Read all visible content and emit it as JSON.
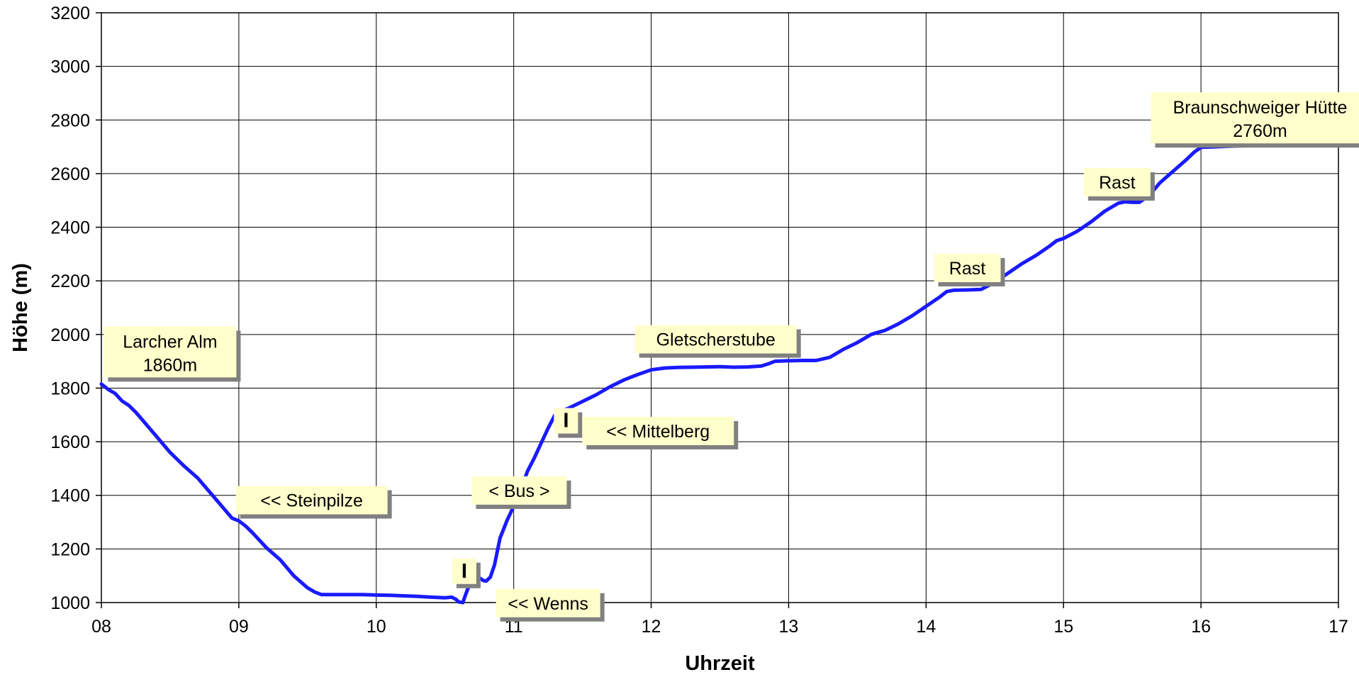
{
  "chart_data": {
    "type": "line",
    "xlabel": "Uhrzeit",
    "ylabel": "Höhe (m)",
    "xlim": [
      8,
      17
    ],
    "ylim": [
      1000,
      3200
    ],
    "x_ticks": [
      8,
      9,
      10,
      11,
      12,
      13,
      14,
      15,
      16,
      17
    ],
    "x_tick_labels": [
      "08",
      "09",
      "10",
      "11",
      "12",
      "13",
      "14",
      "15",
      "16",
      "17"
    ],
    "y_ticks": [
      1000,
      1200,
      1400,
      1600,
      1800,
      2000,
      2200,
      2400,
      2600,
      2800,
      3000,
      3200
    ],
    "y_tick_labels": [
      "1000",
      "1200",
      "1400",
      "1600",
      "1800",
      "2000",
      "2200",
      "2400",
      "2600",
      "2800",
      "3000",
      "3200"
    ],
    "grid": true,
    "line_color": "#1a1aff",
    "annotation_fill": "#ffffcc",
    "annotation_shadow": "#808080",
    "series": [
      {
        "x": [
          8.0,
          8.05,
          8.1,
          8.15,
          8.2,
          8.25,
          8.3,
          8.4,
          8.5,
          8.6,
          8.7,
          8.8,
          8.9,
          8.95,
          9.0,
          9.05,
          9.1,
          9.2,
          9.3,
          9.4,
          9.5,
          9.55,
          9.6,
          9.7,
          9.8,
          9.9,
          10.0,
          10.1,
          10.2,
          10.3,
          10.4,
          10.5,
          10.55,
          10.58,
          10.6,
          10.63,
          10.65,
          10.68,
          10.7,
          10.72,
          10.75,
          10.78,
          10.8,
          10.83,
          10.86,
          10.9,
          10.95,
          11.0,
          11.05,
          11.1,
          11.15,
          11.2,
          11.25,
          11.3,
          11.35,
          11.4,
          11.5,
          11.6,
          11.7,
          11.8,
          11.9,
          12.0,
          12.1,
          12.2,
          12.3,
          12.4,
          12.5,
          12.6,
          12.7,
          12.8,
          12.85,
          12.9,
          13.0,
          13.1,
          13.2,
          13.3,
          13.4,
          13.5,
          13.6,
          13.65,
          13.7,
          13.8,
          13.9,
          14.0,
          14.1,
          14.15,
          14.2,
          14.3,
          14.4,
          14.5,
          14.6,
          14.7,
          14.8,
          14.9,
          14.95,
          15.0,
          15.1,
          15.2,
          15.3,
          15.4,
          15.45,
          15.5,
          15.55,
          15.6,
          15.65,
          15.7,
          15.8,
          15.9,
          15.95,
          16.0,
          16.1,
          16.2,
          16.3,
          16.4,
          16.5,
          16.6,
          16.7,
          16.75,
          16.8,
          16.83
        ],
        "y": [
          1815,
          1795,
          1780,
          1752,
          1735,
          1710,
          1680,
          1620,
          1560,
          1510,
          1465,
          1405,
          1345,
          1315,
          1305,
          1285,
          1260,
          1205,
          1160,
          1100,
          1055,
          1040,
          1030,
          1030,
          1030,
          1030,
          1028,
          1027,
          1025,
          1023,
          1020,
          1018,
          1020,
          1012,
          1002,
          1000,
          1030,
          1070,
          1092,
          1098,
          1092,
          1082,
          1080,
          1095,
          1140,
          1240,
          1305,
          1360,
          1420,
          1490,
          1540,
          1595,
          1650,
          1700,
          1715,
          1725,
          1750,
          1775,
          1805,
          1830,
          1850,
          1868,
          1875,
          1877,
          1878,
          1879,
          1880,
          1878,
          1879,
          1882,
          1890,
          1900,
          1902,
          1903,
          1903,
          1915,
          1945,
          1970,
          2000,
          2008,
          2015,
          2040,
          2070,
          2105,
          2140,
          2160,
          2165,
          2166,
          2168,
          2195,
          2230,
          2265,
          2295,
          2330,
          2350,
          2358,
          2385,
          2420,
          2460,
          2490,
          2495,
          2493,
          2493,
          2510,
          2535,
          2565,
          2610,
          2655,
          2680,
          2698,
          2700,
          2702,
          2704,
          2705,
          2706,
          2707,
          2707,
          2708,
          2707,
          2710
        ]
      }
    ],
    "annotations": [
      {
        "text": "Larcher Alm",
        "text2": "1860m",
        "x": 8.5,
        "y": 1935
      },
      {
        "text": "<< Steinpilze",
        "text2": "",
        "x": 9.53,
        "y": 1382
      },
      {
        "text": "I",
        "text2": "",
        "x": 10.64,
        "y": 1117
      },
      {
        "text": "<< Wenns",
        "text2": "",
        "x": 11.25,
        "y": 998
      },
      {
        "text": "< Bus >",
        "text2": "",
        "x": 11.04,
        "y": 1418
      },
      {
        "text": "I",
        "text2": "",
        "x": 11.38,
        "y": 1678
      },
      {
        "text": "<< Mittelberg",
        "text2": "",
        "x": 12.05,
        "y": 1640
      },
      {
        "text": "Gletscherstube",
        "text2": "",
        "x": 12.47,
        "y": 1982
      },
      {
        "text": "Rast",
        "text2": "",
        "x": 14.3,
        "y": 2248
      },
      {
        "text": "Rast",
        "text2": "",
        "x": 15.39,
        "y": 2568
      },
      {
        "text": "Braunschweiger Hütte",
        "text2": "2760m",
        "x": 16.43,
        "y": 2808
      }
    ]
  }
}
